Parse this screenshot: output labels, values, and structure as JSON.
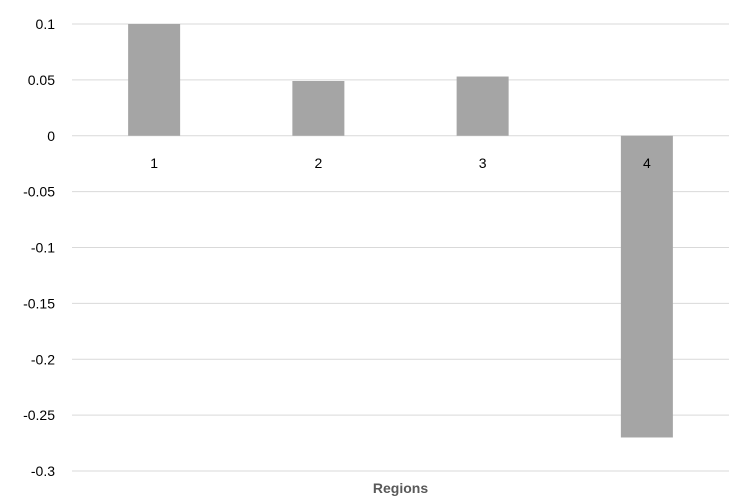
{
  "chart_data": {
    "type": "bar",
    "categories": [
      "1",
      "2",
      "3",
      "4"
    ],
    "values": [
      0.1,
      0.049,
      0.053,
      -0.27
    ],
    "xlabel": "Regions",
    "ylabel": "",
    "ylim": [
      -0.3,
      0.1
    ],
    "yticks": [
      "0.1",
      "0.05",
      "0",
      "-0.05",
      "-0.1",
      "-0.15",
      "-0.2",
      "-0.25",
      "-0.3"
    ],
    "grid": true,
    "legend": "none",
    "bar_color": "#a5a5a5"
  }
}
